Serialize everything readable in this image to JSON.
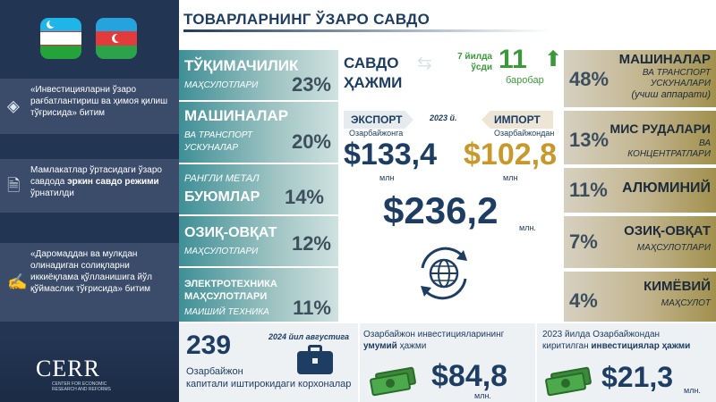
{
  "title": "ТОВАРЛАРНИНГ ЎЗАРО САВДО",
  "agreements": [
    {
      "text_pre": "«Инвестицияларни ўзаро рағбатлантириш ва ҳимоя қилиш тўғрисида»",
      "text_post": "битим",
      "icon": "diamond-icon"
    },
    {
      "text_pre": "Мамлакатлар ўртасидаги ўзаро савдода ",
      "text_bold": "эркин савдо режими",
      "text_post": " ўрнатилди",
      "icon": "document-money-icon"
    },
    {
      "text_pre": "«Даромаддан ва мулкдан олинадиган солиқларни иккиёқлама қўлланишига йўл қўймаслик тўғрисида»",
      "text_post": "битим",
      "icon": "contract-icon"
    }
  ],
  "logo": {
    "name": "CERR",
    "sub": "CENTER FOR ECONOMIC RESEARCH AND REFORMS"
  },
  "trade": {
    "label": "САВДО ҲАЖМИ",
    "growth_period": "7 йилда ўсди",
    "growth_value": "11",
    "growth_unit": "баробар",
    "year": "2023 й.",
    "export_label": "ЭКСПОРТ",
    "export_sub": "Озарбайжонга",
    "export_value": "$133,4",
    "export_unit": "млн",
    "import_label": "ИМПОРТ",
    "import_sub": "Озарбайжондан",
    "import_value": "$102,8",
    "import_unit": "млн",
    "total_value": "$236,2",
    "total_unit": "млн."
  },
  "exports": [
    {
      "name": "ТЎҚИМАЧИЛИК",
      "sub": "МАҲСУЛОТЛАРИ",
      "pct": "23%"
    },
    {
      "name": "МАШИНАЛАР",
      "sub": "ВА ТРАНСПОРТ УСКУНАЛАР",
      "pct": "20%"
    },
    {
      "name_small": "РАНГЛИ МЕТАЛ",
      "name": "БУЮМЛАР",
      "pct": "14%"
    },
    {
      "name": "ОЗИҚ-ОВҚАТ",
      "sub": "МАҲСУЛОТЛАРИ",
      "pct": "12%"
    },
    {
      "name_small": "ЭЛЕКТРОТЕХНИКА",
      "name_small2": "МАҲСУЛОТЛАРИ",
      "sub": "МАИШИЙ ТЕХНИКА",
      "pct": "11%"
    }
  ],
  "imports": [
    {
      "pct": "48%",
      "name": "МАШИНАЛАР",
      "sub": "ВА ТРАНСПОРТ УСКУНАЛАРИ",
      "sub2": "(учиш аппарати)"
    },
    {
      "pct": "13%",
      "name": "МИС РУДАЛАРИ",
      "sub": "ВА КОНЦЕНТРАТЛАРИ"
    },
    {
      "pct": "11%",
      "name": "АЛЮМИНИЙ"
    },
    {
      "pct": "7%",
      "name": "ОЗИҚ-ОВҚАТ",
      "sub": "МАҲСУЛОТЛАРИ"
    },
    {
      "pct": "4%",
      "name": "КИМЁВИЙ",
      "sub": "МАҲСУЛОТ"
    }
  ],
  "bottom": {
    "companies_value": "239",
    "companies_date": "2024 йил августига",
    "companies_text1": "Озарбайжон",
    "companies_text2": "капитали иштирокидаги корхоналар",
    "inv_title1": "Озарбайжон инвестицияларининг",
    "inv_title_bold": "умумий",
    "inv_title2": " ҳажми",
    "inv_value": "$84,8",
    "inv_unit": "млн.",
    "inv23_title1": "2023 йилда Озарбайжондан",
    "inv23_title2": "киритилган ",
    "inv23_title_bold": "инвестициялар ҳажми",
    "inv23_value": "$21,3",
    "inv23_unit": "млн."
  },
  "colors": {
    "navy": "#1d3d63",
    "teal": "#3e8f96",
    "green": "#3a9a3a",
    "gold": "#c8982a",
    "sidebar": "#223552"
  }
}
